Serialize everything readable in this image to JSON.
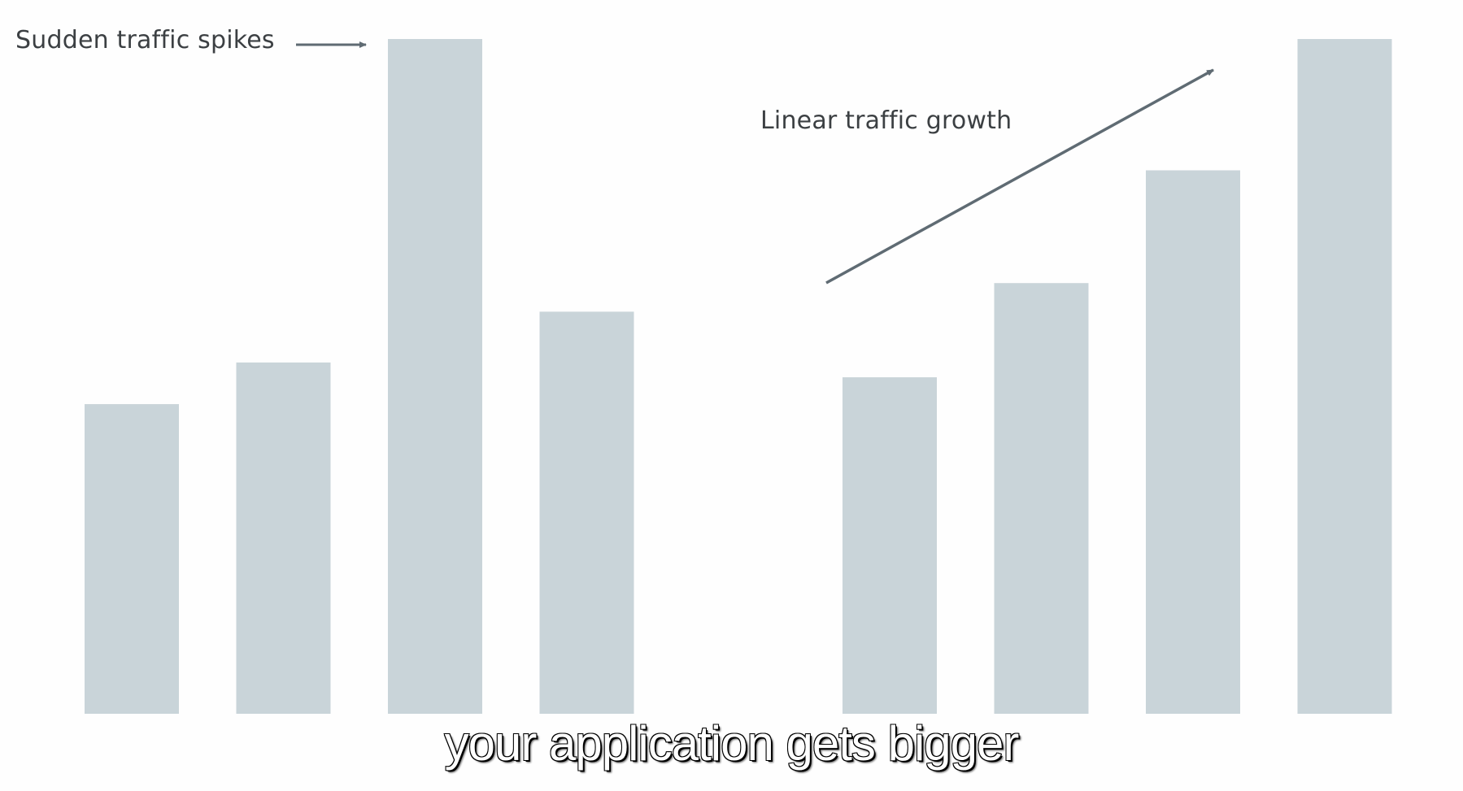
{
  "colors": {
    "bar": "#c9d4d9",
    "arrow": "#5f6b73",
    "background": "#fefefe"
  },
  "chart_data": [
    {
      "type": "bar",
      "values": [
        335,
        380,
        730,
        435
      ],
      "ylim": [
        0,
        730
      ],
      "grid": false,
      "annotation": "Sudden traffic spikes"
    },
    {
      "type": "bar",
      "values": [
        364,
        466,
        588,
        730
      ],
      "ylim": [
        0,
        730
      ],
      "grid": false,
      "annotation": "Linear traffic growth"
    }
  ],
  "caption": "your application gets bigger"
}
